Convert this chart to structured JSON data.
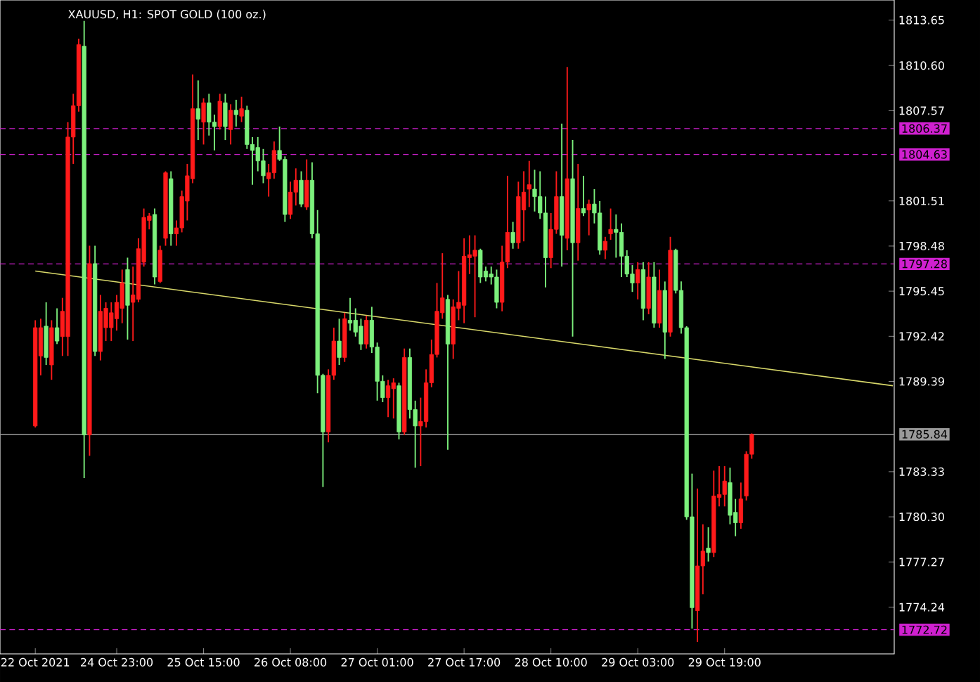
{
  "chart_data": {
    "type": "candlestick",
    "title": "XAUUSD, H1:  SPOT GOLD (100 oz.)",
    "categories": [
      "22 Oct 2021",
      null,
      null,
      null,
      null,
      null,
      null,
      null,
      null,
      null,
      null,
      null,
      null,
      null,
      null,
      "24 Oct 23:00",
      null,
      null,
      null,
      null,
      null,
      null,
      null,
      null,
      null,
      null,
      null,
      null,
      null,
      null,
      null,
      "25 Oct 15:00",
      null,
      null,
      null,
      null,
      null,
      null,
      null,
      null,
      null,
      null,
      null,
      null,
      null,
      null,
      null,
      "26 Oct 08:00",
      null,
      null,
      null,
      null,
      null,
      null,
      null,
      null,
      null,
      null,
      null,
      null,
      null,
      null,
      null,
      "27 Oct 01:00",
      null,
      null,
      null,
      null,
      null,
      null,
      null,
      null,
      null,
      null,
      null,
      null,
      null,
      null,
      null,
      "27 Oct 17:00",
      null,
      null,
      null,
      null,
      null,
      null,
      null,
      null,
      null,
      null,
      null,
      null,
      null,
      null,
      null,
      "28 Oct 10:00",
      null,
      null,
      null,
      null,
      null,
      null,
      null,
      null,
      null,
      null,
      null,
      null,
      null,
      null,
      null,
      "29 Oct 03:00",
      null,
      null,
      null,
      null,
      null,
      null,
      null,
      null,
      null,
      null,
      null,
      null,
      null,
      null,
      null,
      "29 Oct 19:00",
      null,
      null,
      null,
      null,
      null,
      null,
      null,
      null,
      null,
      null,
      null,
      null,
      null,
      null,
      null,
      null,
      null,
      null,
      null,
      null,
      null,
      null,
      null,
      null,
      null,
      null,
      null,
      null,
      null,
      null,
      null
    ],
    "ohlc": [
      [
        1786.4,
        1793.5,
        1786.3,
        1793.0
      ],
      [
        1791.1,
        1793.6,
        1789.8,
        1793.0
      ],
      [
        1793.1,
        1794.7,
        1790.5,
        1791.0
      ],
      [
        1790.5,
        1793.5,
        1789.5,
        1793.0
      ],
      [
        1793.0,
        1794.3,
        1791.9,
        1792.1
      ],
      [
        1792.4,
        1795.0,
        1791.1,
        1794.1
      ],
      [
        1792.4,
        1806.8,
        1791.1,
        1805.8
      ],
      [
        1805.8,
        1808.7,
        1804.0,
        1807.9
      ],
      [
        1807.9,
        1812.4,
        1807.5,
        1812.0
      ],
      [
        1811.9,
        1813.6,
        1782.9,
        1785.8
      ],
      [
        1785.8,
        1798.5,
        1784.4,
        1797.3
      ],
      [
        1797.3,
        1798.5,
        1791.1,
        1791.4
      ],
      [
        1791.4,
        1795.2,
        1790.8,
        1794.1
      ],
      [
        1793.0,
        1794.7,
        1792.1,
        1794.3
      ],
      [
        1793.0,
        1794.7,
        1792.1,
        1794.0
      ],
      [
        1793.6,
        1795.2,
        1792.8,
        1794.7
      ],
      [
        1794.3,
        1796.9,
        1793.3,
        1796.0
      ],
      [
        1796.9,
        1797.7,
        1792.2,
        1794.5
      ],
      [
        1794.7,
        1797.1,
        1792.1,
        1795.2
      ],
      [
        1794.9,
        1799.0,
        1794.7,
        1798.3
      ],
      [
        1797.4,
        1801.0,
        1797.1,
        1800.4
      ],
      [
        1800.2,
        1800.7,
        1799.6,
        1800.5
      ],
      [
        1800.6,
        1801.0,
        1795.9,
        1796.4
      ],
      [
        1796.1,
        1798.5,
        1796.0,
        1798.2
      ],
      [
        1799.0,
        1803.5,
        1798.5,
        1803.4
      ],
      [
        1803.0,
        1803.5,
        1798.5,
        1799.3
      ],
      [
        1799.3,
        1800.2,
        1798.5,
        1799.7
      ],
      [
        1799.7,
        1802.2,
        1799.4,
        1801.8
      ],
      [
        1801.5,
        1804.0,
        1800.2,
        1803.2
      ],
      [
        1803.0,
        1810.0,
        1802.7,
        1807.7
      ],
      [
        1807.7,
        1809.6,
        1805.6,
        1807.0
      ],
      [
        1806.8,
        1808.4,
        1805.3,
        1808.1
      ],
      [
        1808.1,
        1808.7,
        1805.9,
        1806.8
      ],
      [
        1806.8,
        1807.3,
        1804.9,
        1806.5
      ],
      [
        1806.5,
        1808.7,
        1806.3,
        1808.2
      ],
      [
        1808.1,
        1808.7,
        1805.6,
        1806.5
      ],
      [
        1806.3,
        1808.0,
        1805.3,
        1807.6
      ],
      [
        1807.6,
        1808.3,
        1806.5,
        1807.3
      ],
      [
        1807.2,
        1808.5,
        1806.8,
        1807.7
      ],
      [
        1807.6,
        1807.9,
        1805.0,
        1805.3
      ],
      [
        1805.3,
        1805.8,
        1802.6,
        1804.9
      ],
      [
        1805.1,
        1805.8,
        1803.5,
        1804.2
      ],
      [
        1804.2,
        1805.0,
        1802.7,
        1803.2
      ],
      [
        1803.0,
        1804.0,
        1801.8,
        1803.4
      ],
      [
        1803.4,
        1805.5,
        1803.0,
        1804.9
      ],
      [
        1804.9,
        1806.5,
        1804.2,
        1804.3
      ],
      [
        1804.3,
        1804.5,
        1800.1,
        1800.6
      ],
      [
        1800.6,
        1802.8,
        1800.3,
        1802.1
      ],
      [
        1802.1,
        1803.7,
        1801.2,
        1802.9
      ],
      [
        1802.9,
        1803.5,
        1801.1,
        1801.3
      ],
      [
        1801.1,
        1804.3,
        1800.9,
        1802.9
      ],
      [
        1802.9,
        1804.1,
        1799.0,
        1799.3
      ],
      [
        1799.3,
        1800.9,
        1788.6,
        1789.8
      ],
      [
        1789.8,
        1789.9,
        1782.3,
        1786.0
      ],
      [
        1786.0,
        1790.2,
        1785.3,
        1789.8
      ],
      [
        1789.8,
        1793.0,
        1789.5,
        1792.1
      ],
      [
        1792.1,
        1793.6,
        1790.5,
        1791.0
      ],
      [
        1791.0,
        1794.0,
        1790.7,
        1793.6
      ],
      [
        1793.5,
        1795.0,
        1792.8,
        1793.3
      ],
      [
        1793.5,
        1794.3,
        1792.4,
        1792.7
      ],
      [
        1793.1,
        1793.6,
        1791.5,
        1791.9
      ],
      [
        1791.9,
        1793.8,
        1791.6,
        1793.5
      ],
      [
        1793.5,
        1794.4,
        1791.3,
        1791.7
      ],
      [
        1791.7,
        1792.0,
        1788.1,
        1789.4
      ],
      [
        1789.4,
        1789.8,
        1788.0,
        1788.3
      ],
      [
        1788.3,
        1789.5,
        1787.0,
        1789.1
      ],
      [
        1788.9,
        1789.6,
        1786.9,
        1789.3
      ],
      [
        1789.1,
        1789.3,
        1785.5,
        1786.0
      ],
      [
        1786.0,
        1791.6,
        1785.8,
        1791.0
      ],
      [
        1791.0,
        1791.6,
        1786.9,
        1787.5
      ],
      [
        1787.5,
        1788.1,
        1783.6,
        1786.4
      ],
      [
        1786.4,
        1788.3,
        1783.7,
        1786.7
      ],
      [
        1786.7,
        1790.2,
        1786.3,
        1789.3
      ],
      [
        1789.3,
        1792.2,
        1789.0,
        1791.2
      ],
      [
        1791.2,
        1796.0,
        1791.0,
        1794.1
      ],
      [
        1794.0,
        1798.0,
        1793.6,
        1795.0
      ],
      [
        1794.9,
        1795.2,
        1784.8,
        1791.9
      ],
      [
        1791.9,
        1794.9,
        1790.9,
        1794.4
      ],
      [
        1794.3,
        1796.8,
        1793.5,
        1794.7
      ],
      [
        1794.5,
        1799.0,
        1793.3,
        1797.8
      ],
      [
        1797.7,
        1799.2,
        1796.6,
        1797.9
      ],
      [
        1797.8,
        1799.2,
        1793.7,
        1798.2
      ],
      [
        1798.2,
        1798.3,
        1796.0,
        1796.4
      ],
      [
        1796.8,
        1797.1,
        1796.1,
        1796.4
      ],
      [
        1796.6,
        1797.1,
        1795.9,
        1796.4
      ],
      [
        1796.4,
        1796.9,
        1794.3,
        1794.7
      ],
      [
        1794.7,
        1798.5,
        1794.1,
        1797.4
      ],
      [
        1797.4,
        1803.2,
        1797.0,
        1799.4
      ],
      [
        1799.4,
        1800.1,
        1798.3,
        1798.7
      ],
      [
        1798.7,
        1802.8,
        1798.3,
        1801.8
      ],
      [
        1800.9,
        1803.5,
        1798.8,
        1802.1
      ],
      [
        1802.3,
        1804.2,
        1801.1,
        1802.6
      ],
      [
        1802.3,
        1803.6,
        1800.8,
        1801.8
      ],
      [
        1801.8,
        1803.5,
        1800.3,
        1800.7
      ],
      [
        1800.7,
        1801.8,
        1795.7,
        1797.7
      ],
      [
        1797.7,
        1800.7,
        1797.0,
        1799.6
      ],
      [
        1799.6,
        1803.5,
        1799.3,
        1801.8
      ],
      [
        1801.8,
        1806.7,
        1797.1,
        1799.2
      ],
      [
        1799.0,
        1810.5,
        1798.2,
        1803.0
      ],
      [
        1803.0,
        1805.6,
        1792.4,
        1798.7
      ],
      [
        1798.7,
        1804.0,
        1797.5,
        1801.0
      ],
      [
        1801.0,
        1803.2,
        1800.5,
        1800.7
      ],
      [
        1800.9,
        1801.6,
        1799.2,
        1801.3
      ],
      [
        1801.3,
        1802.3,
        1800.0,
        1800.7
      ],
      [
        1800.7,
        1801.5,
        1797.9,
        1798.2
      ],
      [
        1798.2,
        1799.1,
        1797.6,
        1798.8
      ],
      [
        1799.3,
        1801.0,
        1798.9,
        1799.6
      ],
      [
        1799.6,
        1800.6,
        1797.7,
        1799.4
      ],
      [
        1799.4,
        1800.0,
        1796.4,
        1797.8
      ],
      [
        1797.8,
        1798.2,
        1796.4,
        1796.6
      ],
      [
        1796.6,
        1797.2,
        1795.4,
        1796.0
      ],
      [
        1796.0,
        1797.4,
        1794.9,
        1796.9
      ],
      [
        1796.9,
        1797.4,
        1793.5,
        1794.3
      ],
      [
        1794.3,
        1797.4,
        1793.9,
        1796.4
      ],
      [
        1796.4,
        1797.4,
        1793.0,
        1793.3
      ],
      [
        1793.3,
        1796.9,
        1793.0,
        1795.5
      ],
      [
        1795.5,
        1796.1,
        1790.9,
        1792.7
      ],
      [
        1792.7,
        1799.1,
        1792.4,
        1798.2
      ],
      [
        1798.2,
        1798.3,
        1795.3,
        1795.5
      ],
      [
        1795.5,
        1796.1,
        1792.6,
        1793.0
      ],
      [
        1793.0,
        1793.1,
        1780.1,
        1780.3
      ],
      [
        1780.3,
        1783.2,
        1772.8,
        1774.2
      ],
      [
        1774.0,
        1782.2,
        1771.9,
        1777.0
      ],
      [
        1777.0,
        1779.8,
        1775.1,
        1778.0
      ],
      [
        1778.2,
        1779.6,
        1777.3,
        1777.9
      ],
      [
        1777.9,
        1783.4,
        1777.6,
        1781.7
      ],
      [
        1781.6,
        1783.7,
        1781.0,
        1781.8
      ],
      [
        1781.8,
        1783.7,
        1781.0,
        1782.7
      ],
      [
        1782.6,
        1783.6,
        1779.8,
        1780.4
      ],
      [
        1780.6,
        1781.5,
        1779.0,
        1779.9
      ],
      [
        1779.9,
        1782.6,
        1779.5,
        1781.5
      ],
      [
        1781.7,
        1784.7,
        1781.4,
        1784.5
      ],
      [
        1784.5,
        1785.9,
        1784.2,
        1785.84
      ],
      null,
      null,
      null,
      null,
      null,
      null,
      null,
      null,
      null,
      null,
      null,
      null,
      null,
      null,
      null,
      null,
      null,
      null,
      null,
      null,
      null,
      null,
      null,
      null,
      null,
      null
    ],
    "colors": [
      "#ff1a1a",
      "#ff1a1a",
      "#7cf07c",
      "#ff1a1a",
      "#7cf07c",
      "#ff1a1a",
      "#ff1a1a",
      "#ff1a1a",
      "#ff1a1a",
      "#7cf07c",
      "#ff1a1a",
      "#7cf07c",
      "#ff1a1a",
      "#ff1a1a",
      "#ff1a1a",
      "#ff1a1a",
      "#ff1a1a",
      "#7cf07c",
      "#ff1a1a",
      "#ff1a1a",
      "#ff1a1a",
      "#ff1a1a",
      "#7cf07c",
      "#ff1a1a",
      "#ff1a1a",
      "#7cf07c",
      "#ff1a1a",
      "#ff1a1a",
      "#ff1a1a",
      "#ff1a1a",
      "#7cf07c",
      "#ff1a1a",
      "#7cf07c",
      "#7cf07c",
      "#ff1a1a",
      "#7cf07c",
      "#ff1a1a",
      "#7cf07c",
      "#ff1a1a",
      "#7cf07c",
      "#7cf07c",
      "#7cf07c",
      "#7cf07c",
      "#ff1a1a",
      "#ff1a1a",
      "#7cf07c",
      "#7cf07c",
      "#ff1a1a",
      "#ff1a1a",
      "#7cf07c",
      "#ff1a1a",
      "#7cf07c",
      "#7cf07c",
      "#7cf07c",
      "#ff1a1a",
      "#ff1a1a",
      "#7cf07c",
      "#ff1a1a",
      "#7cf07c",
      "#7cf07c",
      "#7cf07c",
      "#ff1a1a",
      "#7cf07c",
      "#7cf07c",
      "#7cf07c",
      "#ff1a1a",
      "#ff1a1a",
      "#7cf07c",
      "#ff1a1a",
      "#7cf07c",
      "#7cf07c",
      "#ff1a1a",
      "#ff1a1a",
      "#ff1a1a",
      "#ff1a1a",
      "#ff1a1a",
      "#7cf07c",
      "#ff1a1a",
      "#ff1a1a",
      "#ff1a1a",
      "#ff1a1a",
      "#ff1a1a",
      "#7cf07c",
      "#7cf07c",
      "#7cf07c",
      "#7cf07c",
      "#ff1a1a",
      "#ff1a1a",
      "#7cf07c",
      "#ff1a1a",
      "#ff1a1a",
      "#ff1a1a",
      "#7cf07c",
      "#7cf07c",
      "#7cf07c",
      "#ff1a1a",
      "#ff1a1a",
      "#7cf07c",
      "#ff1a1a",
      "#7cf07c",
      "#ff1a1a",
      "#7cf07c",
      "#ff1a1a",
      "#7cf07c",
      "#7cf07c",
      "#ff1a1a",
      "#ff1a1a",
      "#7cf07c",
      "#7cf07c",
      "#7cf07c",
      "#7cf07c",
      "#ff1a1a",
      "#7cf07c",
      "#ff1a1a",
      "#7cf07c",
      "#ff1a1a",
      "#7cf07c",
      "#ff1a1a",
      "#7cf07c",
      "#7cf07c",
      "#7cf07c",
      "#7cf07c",
      "#ff1a1a",
      "#ff1a1a",
      "#7cf07c",
      "#ff1a1a",
      "#ff1a1a",
      "#ff1a1a",
      "#7cf07c",
      "#7cf07c",
      "#ff1a1a",
      "#ff1a1a",
      "#ff1a1a",
      null,
      null,
      null,
      null,
      null,
      null,
      null,
      null,
      null,
      null,
      null,
      null,
      null,
      null,
      null,
      null,
      null,
      null,
      null,
      null,
      null,
      null,
      null,
      null,
      null,
      null
    ],
    "series": [
      {
        "type": "line",
        "color": "#d8d86a",
        "values": [
          1796.8,
          null,
          null,
          null,
          null,
          null,
          null,
          null,
          null,
          null,
          null,
          null,
          null,
          null,
          null,
          null,
          null,
          null,
          null,
          null,
          null,
          null,
          null,
          null,
          null,
          null,
          null,
          null,
          null,
          null,
          null,
          null,
          null,
          null,
          null,
          null,
          null,
          null,
          null,
          null,
          null,
          null,
          null,
          null,
          null,
          null,
          null,
          null,
          null,
          null,
          null,
          null,
          null,
          null,
          null,
          null,
          null,
          null,
          null,
          null,
          null,
          null,
          null,
          null,
          null,
          null,
          null,
          null,
          null,
          null,
          null,
          null,
          null,
          null,
          null,
          null,
          null,
          null,
          null,
          null,
          null,
          null,
          null,
          null,
          null,
          null,
          null,
          null,
          null,
          null,
          null,
          null,
          null,
          null,
          null,
          null,
          null,
          null,
          null,
          null,
          null,
          null,
          null,
          null,
          null,
          null,
          null,
          null,
          null,
          null,
          null,
          null,
          null,
          null,
          null,
          null,
          null,
          null,
          null,
          null,
          null,
          null,
          null,
          null,
          null,
          null,
          null,
          null,
          null,
          null,
          null,
          null,
          null,
          null,
          null,
          null,
          null,
          null,
          null,
          null,
          null,
          null,
          null,
          null,
          null,
          null,
          null,
          null,
          null,
          null,
          null,
          null,
          null,
          null,
          null,
          null,
          null,
          null,
          1789.1
        ]
      }
    ],
    "ylim": [
      1771.1,
      1815.0
    ],
    "yticks": [
      1813.65,
      {
        "value": 1810.6,
        "label": "1810.60"
      },
      1807.57,
      1801.51,
      1798.48,
      1795.45,
      1792.42,
      1789.39,
      1783.33,
      {
        "value": 1780.3,
        "label": "1780.30"
      },
      1777.27,
      1774.24
    ],
    "ref_lines": [
      {
        "axis": "y",
        "value": 1806.37,
        "label": "1806.37",
        "color": "#d020d0",
        "line_style": "dashed"
      },
      {
        "axis": "y",
        "value": 1804.63,
        "label": "1804.63",
        "color": "#d020d0",
        "line_style": "dashed"
      },
      {
        "axis": "y",
        "value": 1797.28,
        "label": "1797.28",
        "color": "#d020d0",
        "line_style": "dashed"
      },
      {
        "axis": "y",
        "value": 1772.72,
        "label": "1772.72",
        "color": "#d020d0",
        "line_style": "dashed"
      },
      {
        "axis": "y",
        "value": 1785.84,
        "label": "1785.84",
        "color": "#9a9a9a",
        "line_style": "solid"
      }
    ]
  }
}
